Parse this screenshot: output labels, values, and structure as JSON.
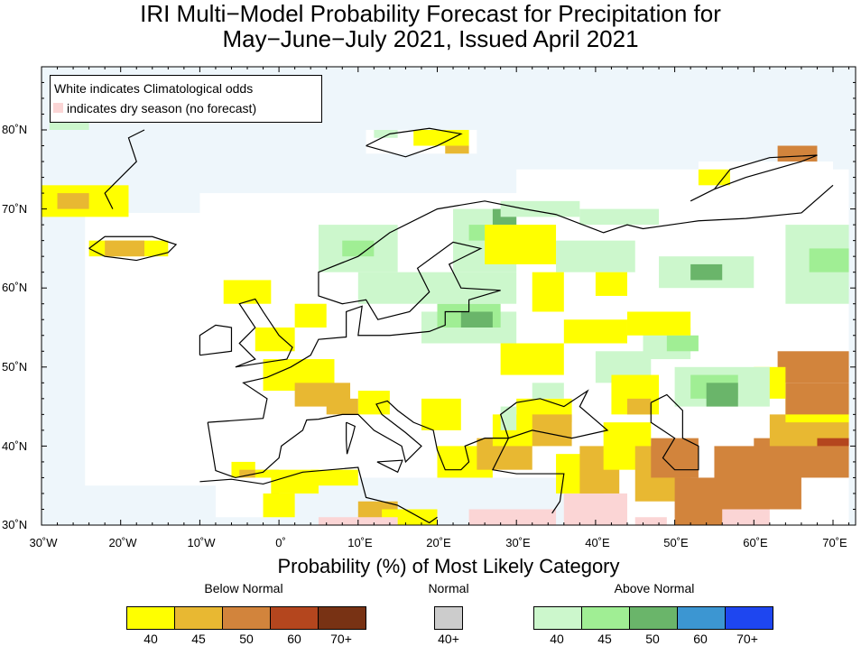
{
  "title_line1": "IRI Multi−Model Probability Forecast for Precipitation for",
  "title_line2": "May−June−July 2021, Issued April 2021",
  "legend": {
    "line1": "White indicates Climatological odds",
    "line2": "indicates dry season (no forecast)"
  },
  "y_ticks": [
    "80˚N",
    "70˚N",
    "60˚N",
    "50˚N",
    "40˚N",
    "30˚N"
  ],
  "x_ticks": [
    "30˚W",
    "20˚W",
    "10˚W",
    "0˚",
    "10˚E",
    "20˚E",
    "30˚E",
    "40˚E",
    "50˚E",
    "60˚E",
    "70˚E"
  ],
  "colorbar": {
    "title": "Probability (%) of Most Likely Category",
    "below": {
      "label": "Below Normal",
      "ticks": [
        "40",
        "45",
        "50",
        "60",
        "70+"
      ],
      "colors": [
        "#ffff00",
        "#e8b832",
        "#d2843c",
        "#b4461e",
        "#783214"
      ]
    },
    "normal": {
      "label": "Normal",
      "ticks": [
        "40+"
      ],
      "colors": [
        "#cccccc"
      ]
    },
    "above": {
      "label": "Above Normal",
      "ticks": [
        "40",
        "45",
        "50",
        "60",
        "70+"
      ],
      "colors": [
        "#ccf7cc",
        "#a0ee94",
        "#6ab56a",
        "#3c96d2",
        "#1e46f0"
      ]
    }
  },
  "colors": {
    "ocean": "#eef6fb",
    "dry_season": "#fbd5d5",
    "climatology": "#ffffff"
  }
}
